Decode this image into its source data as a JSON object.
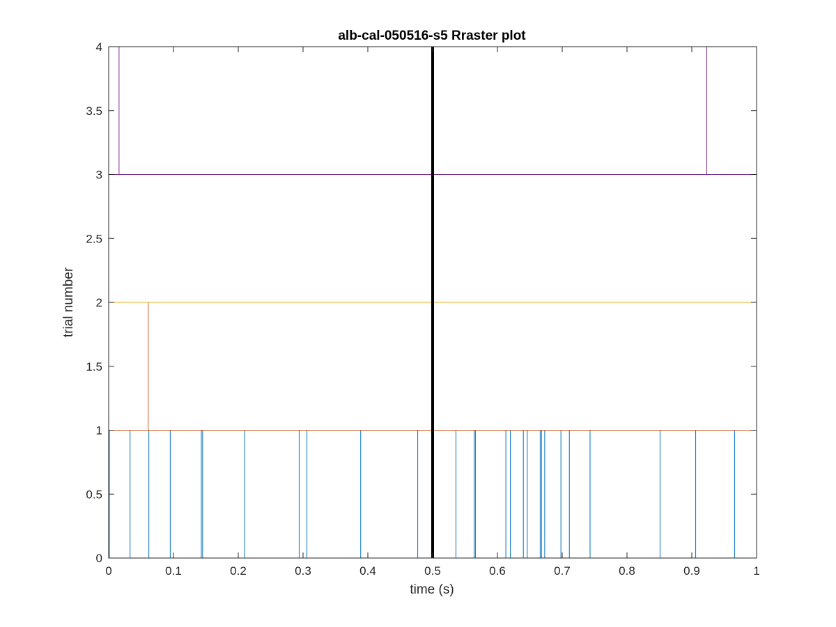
{
  "chart_data": {
    "type": "line",
    "title": "alb-cal-050516-s5 Rraster plot",
    "xlabel": "time (s)",
    "ylabel": "trial number",
    "xlim": [
      0,
      1
    ],
    "ylim": [
      0,
      4
    ],
    "xticks": [
      0,
      0.1,
      0.2,
      0.3,
      0.4,
      0.5,
      0.6,
      0.7,
      0.8,
      0.9,
      1
    ],
    "xtick_labels": [
      "0",
      "0.1",
      "0.2",
      "0.3",
      "0.4",
      "0.5",
      "0.6",
      "0.7",
      "0.8",
      "0.9",
      "1"
    ],
    "yticks": [
      0,
      0.5,
      1,
      1.5,
      2,
      2.5,
      3,
      3.5,
      4
    ],
    "ytick_labels": [
      "0",
      "0.5",
      "1",
      "1.5",
      "2",
      "2.5",
      "3",
      "3.5",
      "4"
    ],
    "grid": false,
    "box": true,
    "event_marker": {
      "x": 0.5,
      "color": "#000000"
    },
    "series": [
      {
        "color": "#0072BD",
        "baseline": 0,
        "spikes": [
          0.001,
          0.033,
          0.062,
          0.095,
          0.143,
          0.145,
          0.21,
          0.294,
          0.306,
          0.389,
          0.477,
          0.536,
          0.564,
          0.566,
          0.613,
          0.62,
          0.64,
          0.646,
          0.666,
          0.668,
          0.673,
          0.698,
          0.711,
          0.743,
          0.851,
          0.906,
          0.966
        ]
      },
      {
        "color": "#D95319",
        "baseline": 1,
        "spikes": [
          0.061
        ]
      },
      {
        "color": "#EDB120",
        "baseline": 2,
        "spikes": []
      },
      {
        "color": "#7E2F8E",
        "baseline": 3,
        "spikes": [
          0.016,
          0.923
        ]
      }
    ]
  }
}
